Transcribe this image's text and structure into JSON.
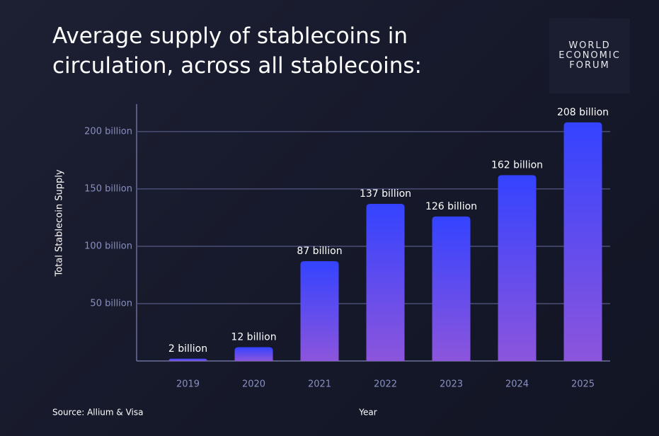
{
  "chart_data": {
    "type": "bar",
    "title": "Average supply of stablecoins in circulation, across all stablecoins:",
    "logo": [
      "WORLD",
      "ECONOMIC",
      "FORUM"
    ],
    "source": "Source: Allium & Visa",
    "x_label": "Year",
    "y_label": "Total Stablecoin Supply",
    "categories": [
      "2019",
      "2020",
      "2021",
      "2022",
      "2023",
      "2024",
      "2025"
    ],
    "values": [
      2,
      12,
      87,
      137,
      126,
      162,
      208
    ],
    "value_labels": [
      "2 billion",
      "12 billion",
      "87 billion",
      "137 billion",
      "126 billion",
      "162 billion",
      "208 billion"
    ],
    "color": [
      "#3443ff",
      "#8c55dc"
    ],
    "ylim": [
      0,
      224
    ],
    "yticks": [
      {
        "value": 50,
        "label": "50 billion"
      },
      {
        "value": 100,
        "label": "100 billion"
      },
      {
        "value": 150,
        "label": "150 billion"
      },
      {
        "value": 200,
        "label": "200 billion"
      }
    ],
    "grid": true
  }
}
